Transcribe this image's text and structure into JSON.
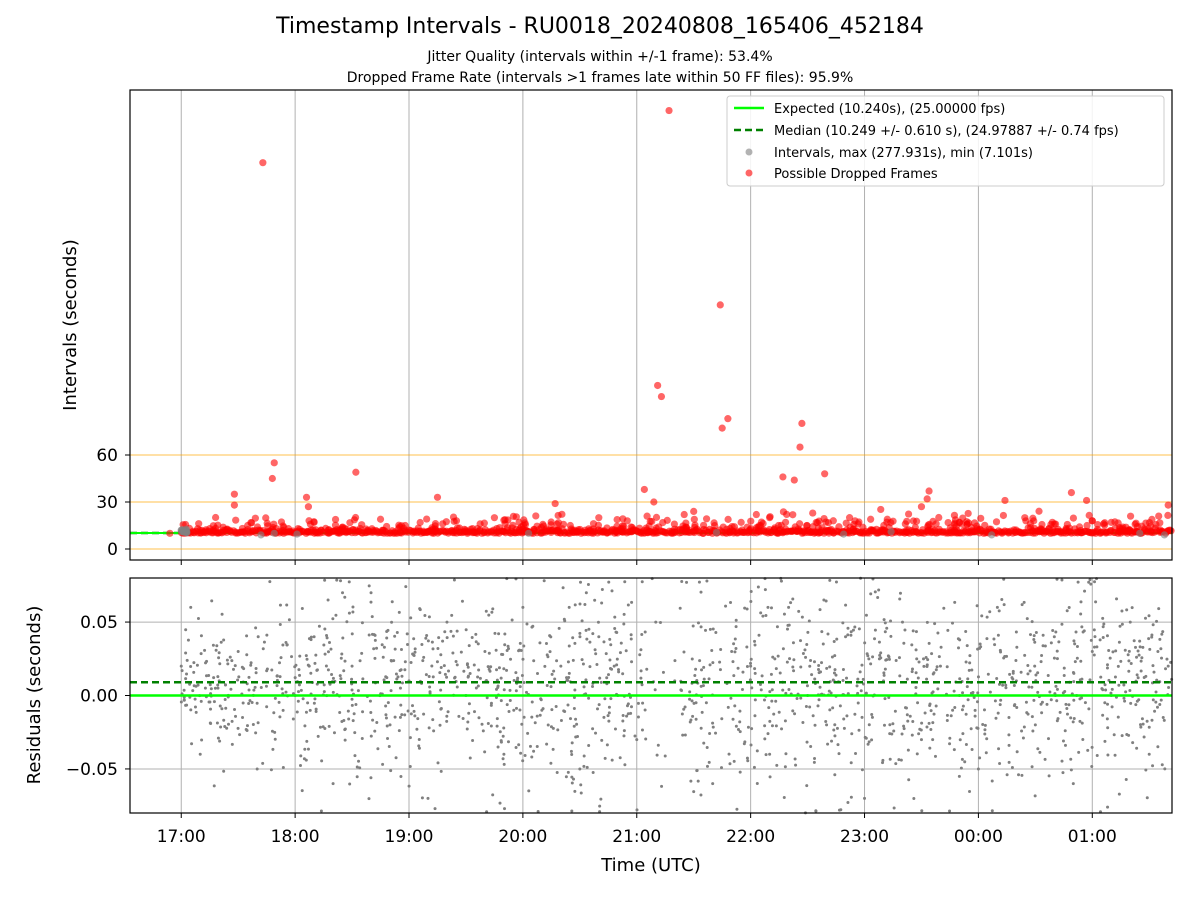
{
  "figure": {
    "title": "Timestamp Intervals - RU0018_20240808_165406_452184",
    "subtitle_1": "Jitter Quality (intervals within +/-1 frame): 53.4%",
    "subtitle_2": "Dropped Frame Rate (intervals >1 frames late within 50 FF files): 95.9%"
  },
  "colors": {
    "expected": "#00ff00",
    "median": "#008000",
    "intervals": "#808080",
    "dropped": "#ff0000",
    "threshold": "#ffa500",
    "grid": "#b0b0b0"
  },
  "chart_data": [
    {
      "type": "scatter",
      "ylabel": "Intervals (seconds)",
      "x_time_range_utc": [
        "16:33",
        "01:42"
      ],
      "y_ticks": [
        "0",
        "30",
        "60"
      ],
      "y_tick_values": [
        0,
        30,
        60
      ],
      "grid": "vertical",
      "threshold_lines": [
        0,
        30,
        60
      ],
      "legend_position": "upper-right",
      "legend": [
        "Expected (10.240s), (25.00000 fps)",
        "Median (10.249 +/- 0.610 s), (24.97887 +/- 0.74 fps)",
        "Intervals, max (277.931s), min (7.101s)",
        "Possible Dropped Frames"
      ],
      "series": [
        {
          "name": "Expected (10.240s), (25.00000 fps)",
          "kind": "line",
          "value": 10.24
        },
        {
          "name": "Median (10.249 +/- 0.610 s), (24.97887 +/- 0.74 fps)",
          "kind": "dashed-line",
          "value": 10.249
        },
        {
          "name": "Intervals, max (277.931s), min (7.101s)",
          "kind": "scatter",
          "x": [
            "17:00",
            "17:01",
            "17:03",
            "17:42",
            "17:49",
            "18:01",
            "20:03",
            "21:42",
            "22:49",
            "23:14",
            "00:07",
            "01:25",
            "01:38"
          ],
          "y": [
            12,
            11,
            10.5,
            9,
            10,
            9.5,
            10,
            10.5,
            9.5,
            11,
            9,
            10,
            9
          ]
        },
        {
          "name": "Possible Dropped Frames",
          "kind": "scatter",
          "x": [
            "17:43",
            "21:17",
            "21:44",
            "21:13",
            "21:11",
            "21:48",
            "21:45",
            "22:27",
            "22:26",
            "22:17",
            "22:23",
            "22:39",
            "17:49",
            "17:48",
            "18:06",
            "18:07",
            "17:28",
            "17:28",
            "18:32",
            "19:15",
            "20:17",
            "21:04",
            "21:09",
            "22:03",
            "23:34",
            "23:33",
            "23:30",
            "00:14",
            "00:49",
            "00:57",
            "01:40",
            "01:00",
            "16:54",
            "17:15",
            "17:35",
            "18:10",
            "18:25",
            "18:45",
            "18:58",
            "19:25",
            "19:45",
            "19:58",
            "20:25",
            "20:40",
            "20:55",
            "21:25",
            "21:30",
            "21:55",
            "22:10",
            "22:55",
            "23:12",
            "23:50",
            "00:25",
            "00:40",
            "01:10",
            "01:35"
          ],
          "y": [
            245,
            278,
            155,
            97,
            104,
            83,
            77,
            80,
            65,
            46,
            44,
            48,
            55,
            45,
            33,
            27,
            35,
            28,
            49,
            33,
            29,
            38,
            30,
            22,
            37,
            32,
            27,
            31,
            36,
            31,
            28,
            18,
            10,
            13,
            15,
            17,
            14,
            19,
            15,
            18,
            20,
            17,
            15,
            20,
            18,
            22,
            24,
            17,
            20,
            18,
            19,
            17,
            18,
            16,
            17,
            21
          ]
        }
      ]
    },
    {
      "type": "scatter",
      "xlabel": "Time (UTC)",
      "ylabel": "Residuals (seconds)",
      "x_ticks": [
        "17:00",
        "18:00",
        "19:00",
        "20:00",
        "21:00",
        "22:00",
        "23:00",
        "00:00",
        "01:00"
      ],
      "x_tick_hours": [
        17,
        18,
        19,
        20,
        21,
        22,
        23,
        24,
        25
      ],
      "y_ticks": [
        "0.05",
        "0.00",
        "−0.05"
      ],
      "y_tick_values": [
        0.05,
        0.0,
        -0.05
      ],
      "ylim": [
        -0.08,
        0.08
      ],
      "grid": "both",
      "series": [
        {
          "name": "Expected (10.240s), (25.00000 fps)",
          "kind": "line",
          "value": 0.0
        },
        {
          "name": "Median (10.249 +/- 0.610 s), (24.97887 +/- 0.74 fps)",
          "kind": "dashed-line",
          "value": 0.009
        },
        {
          "name": "Intervals, max (277.931s), min (7.101s)",
          "kind": "scatter",
          "x": [
            "17:00",
            "17:05",
            "17:10",
            "17:20",
            "17:30",
            "17:40",
            "18:00",
            "18:10",
            "18:20",
            "18:30",
            "18:40",
            "18:50",
            "19:00",
            "19:10",
            "19:20",
            "19:30",
            "19:40",
            "19:50",
            "20:00",
            "20:10",
            "20:20",
            "20:30",
            "20:40",
            "20:50",
            "21:00",
            "21:10",
            "21:20",
            "21:40",
            "21:50",
            "22:00",
            "22:10",
            "22:20",
            "22:30",
            "22:40",
            "22:50",
            "23:00",
            "23:10",
            "23:20",
            "23:30",
            "23:40",
            "23:50",
            "00:00",
            "00:10",
            "00:20",
            "00:30",
            "00:40",
            "00:50",
            "01:00",
            "01:10",
            "01:20",
            "01:30",
            "01:40"
          ],
          "y": [
            0.02,
            0.06,
            -0.04,
            0.01,
            0.03,
            -0.05,
            0.0,
            0.04,
            -0.06,
            0.02,
            0.07,
            -0.02,
            0.01,
            -0.07,
            0.05,
            0.0,
            0.03,
            -0.04,
            0.06,
            -0.01,
            0.02,
            -0.05,
            0.04,
            0.0,
            -0.03,
            0.05,
            0.01,
            -0.06,
            0.03,
            0.02,
            -0.04,
            0.06,
            0.0,
            -0.02,
            0.04,
            -0.07,
            0.01,
            0.05,
            -0.03,
            0.02,
            0.0,
            -0.05,
            0.06,
            0.01,
            -0.02,
            0.04,
            -0.06,
            0.03,
            0.0,
            0.05,
            -0.04,
            0.02
          ]
        }
      ]
    }
  ]
}
